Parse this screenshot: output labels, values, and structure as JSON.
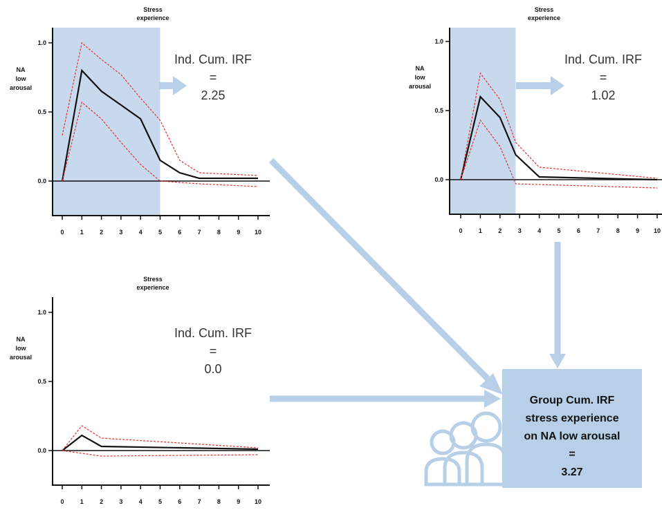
{
  "colors": {
    "shade": "#c8d9ee",
    "arrow": "#b7d0e8",
    "group_box": "#b7d0e8",
    "irf_line": "#111111",
    "ci_line": "#e03030"
  },
  "icons": {
    "group": "people-group-icon"
  },
  "panels": [
    {
      "title_lines": [
        "Stress",
        "experience"
      ],
      "ylabel_lines": [
        "NA",
        "low",
        "arousal"
      ],
      "yticks": [
        "1.0",
        "0.5",
        "0.0"
      ],
      "xticks": [
        "0",
        "1",
        "2",
        "3",
        "4",
        "5",
        "6",
        "7",
        "8",
        "9",
        "10"
      ],
      "irf_lines": [
        "Ind. Cum. IRF",
        "=",
        "2.25"
      ]
    },
    {
      "title_lines": [
        "Stress",
        "experience"
      ],
      "ylabel_lines": [
        "NA",
        "low",
        "arousal"
      ],
      "yticks": [
        "1.0",
        "0.5",
        "0.0"
      ],
      "xticks": [
        "0",
        "1",
        "2",
        "3",
        "4",
        "5",
        "6",
        "7",
        "8",
        "9",
        "10"
      ],
      "irf_lines": [
        "Ind. Cum. IRF",
        "=",
        "1.02"
      ]
    },
    {
      "title_lines": [
        "Stress",
        "experience"
      ],
      "ylabel_lines": [
        "NA",
        "low",
        "arousal"
      ],
      "yticks": [
        "1.0",
        "0.5",
        "0.0"
      ],
      "xticks": [
        "0",
        "1",
        "2",
        "3",
        "4",
        "5",
        "6",
        "7",
        "8",
        "9",
        "10"
      ],
      "irf_lines": [
        "Ind. Cum. IRF",
        "=",
        "0.0"
      ]
    }
  ],
  "chart_data": [
    {
      "type": "line",
      "shaded_until": 5,
      "ylim": [
        -0.25,
        1.0
      ],
      "series": [
        {
          "x": [
            0,
            1,
            2,
            3,
            4,
            5,
            6,
            7,
            10
          ],
          "y": [
            0,
            0.8,
            0.65,
            0.55,
            0.45,
            0.15,
            0.06,
            0.02,
            0.02
          ]
        },
        {
          "x": [
            0,
            1,
            2,
            3,
            4,
            5,
            6,
            7,
            10
          ],
          "y": [
            0.33,
            1.0,
            0.88,
            0.77,
            0.6,
            0.44,
            0.15,
            0.06,
            0.04
          ]
        },
        {
          "x": [
            0,
            1,
            2,
            3,
            4,
            5,
            6,
            7,
            10
          ],
          "y": [
            0,
            0.57,
            0.45,
            0.28,
            0.12,
            0.0,
            -0.01,
            -0.02,
            -0.04
          ]
        }
      ]
    },
    {
      "type": "line",
      "shaded_until": 2.8,
      "ylim": [
        -0.25,
        1.0
      ],
      "series": [
        {
          "x": [
            0,
            1,
            2,
            2.8,
            4,
            10
          ],
          "y": [
            0,
            0.6,
            0.45,
            0.18,
            0.02,
            0.0
          ]
        },
        {
          "x": [
            0,
            1,
            2,
            2.8,
            4,
            10
          ],
          "y": [
            0,
            0.77,
            0.58,
            0.27,
            0.09,
            0.01
          ]
        },
        {
          "x": [
            0,
            1,
            2,
            2.8,
            10
          ],
          "y": [
            0,
            0.43,
            0.24,
            -0.03,
            -0.06
          ]
        }
      ]
    },
    {
      "type": "line",
      "shaded_until": 0,
      "ylim": [
        -0.25,
        1.0
      ],
      "series": [
        {
          "x": [
            0,
            1,
            2,
            10
          ],
          "y": [
            0,
            0.11,
            0.03,
            0.01
          ]
        },
        {
          "x": [
            0,
            1,
            2,
            10
          ],
          "y": [
            0,
            0.18,
            0.09,
            0.02
          ]
        },
        {
          "x": [
            0,
            1,
            2,
            10
          ],
          "y": [
            0,
            -0.02,
            -0.04,
            -0.03
          ]
        }
      ]
    }
  ],
  "group_box": {
    "lines": [
      "Group Cum. IRF",
      "stress experience",
      "on NA low arousal",
      "=",
      "3.27"
    ]
  }
}
